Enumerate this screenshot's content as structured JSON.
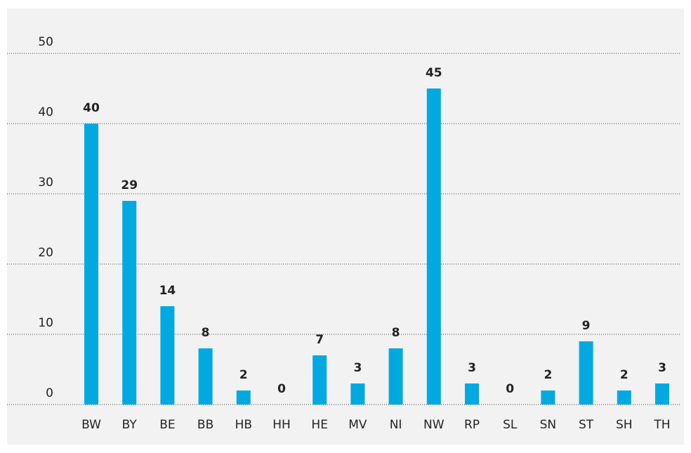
{
  "chart_data": {
    "type": "bar",
    "categories": [
      "BW",
      "BY",
      "BE",
      "BB",
      "HB",
      "HH",
      "HE",
      "MV",
      "NI",
      "NW",
      "RP",
      "SL",
      "SN",
      "ST",
      "SH",
      "TH"
    ],
    "values": [
      40,
      29,
      14,
      8,
      2,
      0,
      7,
      3,
      8,
      45,
      3,
      0,
      2,
      9,
      2,
      3
    ],
    "color": "#00a9e0",
    "ylim": [
      0,
      50
    ],
    "yticks": [
      0,
      10,
      20,
      30,
      40,
      50
    ],
    "grid": true
  }
}
